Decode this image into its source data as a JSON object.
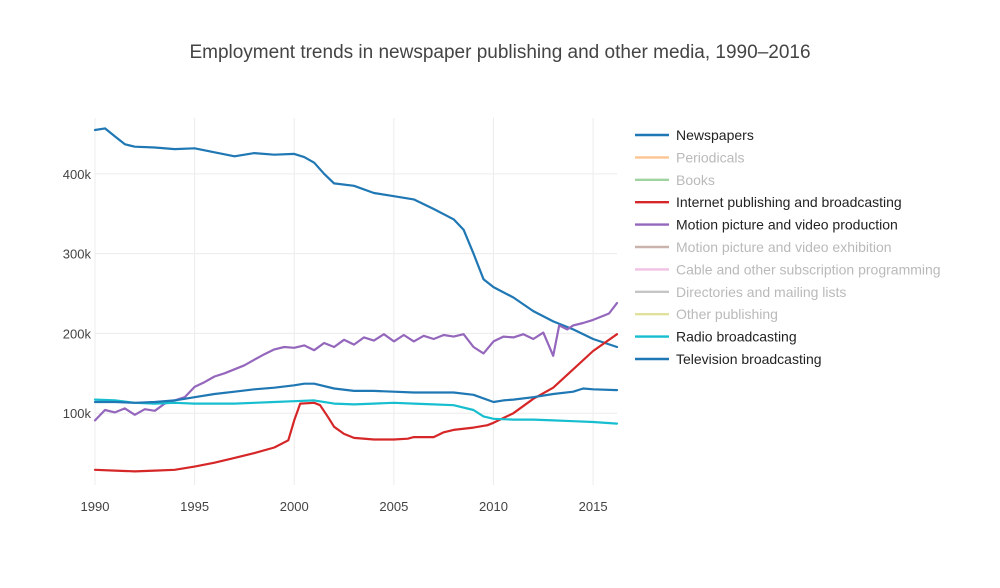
{
  "chart_data": {
    "type": "line",
    "title": "Employment trends in newspaper publishing and other media, 1990–2016",
    "xlabel": "",
    "ylabel": "",
    "xlim": [
      1990,
      2016.2
    ],
    "ylim": [
      10000,
      470000
    ],
    "x_ticks": [
      1990,
      1995,
      2000,
      2005,
      2010,
      2015
    ],
    "x_tick_labels": [
      "1990",
      "1995",
      "2000",
      "2005",
      "2010",
      "2015"
    ],
    "y_ticks": [
      100000,
      200000,
      300000,
      400000
    ],
    "y_tick_labels": [
      "100k",
      "200k",
      "300k",
      "400k"
    ],
    "grid": true,
    "legend_position": "right",
    "series": [
      {
        "name": "Newspapers",
        "color": "#1f77b4",
        "visible": true,
        "points": [
          [
            1990,
            455000
          ],
          [
            1990.5,
            457000
          ],
          [
            1991,
            447000
          ],
          [
            1991.5,
            437000
          ],
          [
            1992,
            434000
          ],
          [
            1993,
            433000
          ],
          [
            1994,
            431000
          ],
          [
            1995,
            432000
          ],
          [
            1996,
            427000
          ],
          [
            1997,
            422000
          ],
          [
            1998,
            426000
          ],
          [
            1999,
            424000
          ],
          [
            2000,
            425000
          ],
          [
            2000.5,
            421000
          ],
          [
            2001,
            414000
          ],
          [
            2001.5,
            400000
          ],
          [
            2002,
            388000
          ],
          [
            2003,
            385000
          ],
          [
            2004,
            376000
          ],
          [
            2005,
            372000
          ],
          [
            2006,
            368000
          ],
          [
            2007,
            356000
          ],
          [
            2008,
            343000
          ],
          [
            2008.5,
            330000
          ],
          [
            2009,
            300000
          ],
          [
            2009.5,
            268000
          ],
          [
            2010,
            258000
          ],
          [
            2011,
            245000
          ],
          [
            2012,
            228000
          ],
          [
            2013,
            215000
          ],
          [
            2014,
            205000
          ],
          [
            2015,
            193000
          ],
          [
            2016.2,
            183000
          ]
        ]
      },
      {
        "name": "Periodicals",
        "color": "#ff7f0e",
        "visible": false,
        "points": []
      },
      {
        "name": "Books",
        "color": "#2ca02c",
        "visible": false,
        "points": []
      },
      {
        "name": "Internet publishing and broadcasting",
        "color": "#d62728",
        "visible": true,
        "points": [
          [
            1990,
            29000
          ],
          [
            1991,
            28000
          ],
          [
            1992,
            27000
          ],
          [
            1993,
            28000
          ],
          [
            1994,
            29000
          ],
          [
            1995,
            33000
          ],
          [
            1996,
            38000
          ],
          [
            1997,
            44000
          ],
          [
            1998,
            50000
          ],
          [
            1999,
            57000
          ],
          [
            1999.7,
            66000
          ],
          [
            2000,
            91000
          ],
          [
            2000.3,
            112000
          ],
          [
            2001,
            113000
          ],
          [
            2001.3,
            110000
          ],
          [
            2001.7,
            95000
          ],
          [
            2002,
            83000
          ],
          [
            2002.5,
            74000
          ],
          [
            2003,
            69000
          ],
          [
            2004,
            67000
          ],
          [
            2005,
            67000
          ],
          [
            2005.7,
            68000
          ],
          [
            2006,
            70000
          ],
          [
            2007,
            70000
          ],
          [
            2007.5,
            76000
          ],
          [
            2008,
            79000
          ],
          [
            2009,
            82000
          ],
          [
            2009.7,
            85000
          ],
          [
            2010,
            88000
          ],
          [
            2011,
            100000
          ],
          [
            2012,
            118000
          ],
          [
            2013,
            132000
          ],
          [
            2014,
            155000
          ],
          [
            2015,
            178000
          ],
          [
            2016.2,
            199000
          ]
        ]
      },
      {
        "name": "Motion picture and video production",
        "color": "#9467bd",
        "visible": true,
        "points": [
          [
            1990,
            91000
          ],
          [
            1990.5,
            104000
          ],
          [
            1991,
            101000
          ],
          [
            1991.5,
            106000
          ],
          [
            1992,
            98000
          ],
          [
            1992.5,
            105000
          ],
          [
            1993,
            103000
          ],
          [
            1993.5,
            112000
          ],
          [
            1994,
            116000
          ],
          [
            1994.5,
            120000
          ],
          [
            1995,
            133000
          ],
          [
            1995.5,
            139000
          ],
          [
            1996,
            146000
          ],
          [
            1996.5,
            150000
          ],
          [
            1997,
            155000
          ],
          [
            1997.5,
            160000
          ],
          [
            1998,
            167000
          ],
          [
            1998.5,
            174000
          ],
          [
            1999,
            180000
          ],
          [
            1999.5,
            183000
          ],
          [
            2000,
            182000
          ],
          [
            2000.5,
            185000
          ],
          [
            2001,
            179000
          ],
          [
            2001.5,
            188000
          ],
          [
            2002,
            183000
          ],
          [
            2002.5,
            192000
          ],
          [
            2003,
            186000
          ],
          [
            2003.5,
            195000
          ],
          [
            2004,
            191000
          ],
          [
            2004.5,
            199000
          ],
          [
            2005,
            190000
          ],
          [
            2005.5,
            198000
          ],
          [
            2006,
            190000
          ],
          [
            2006.5,
            197000
          ],
          [
            2007,
            193000
          ],
          [
            2007.5,
            198000
          ],
          [
            2008,
            196000
          ],
          [
            2008.5,
            199000
          ],
          [
            2009,
            183000
          ],
          [
            2009.5,
            175000
          ],
          [
            2010,
            190000
          ],
          [
            2010.5,
            196000
          ],
          [
            2011,
            195000
          ],
          [
            2011.5,
            199000
          ],
          [
            2012,
            193000
          ],
          [
            2012.5,
            201000
          ],
          [
            2013,
            172000
          ],
          [
            2013.3,
            210000
          ],
          [
            2013.7,
            205000
          ],
          [
            2014,
            210000
          ],
          [
            2014.5,
            213000
          ],
          [
            2015,
            217000
          ],
          [
            2015.5,
            222000
          ],
          [
            2015.8,
            225000
          ],
          [
            2016.2,
            238000
          ]
        ]
      },
      {
        "name": "Motion picture and video exhibition",
        "color": "#8c564b",
        "visible": false,
        "points": []
      },
      {
        "name": "Cable and other subscription programming",
        "color": "#e377c2",
        "visible": false,
        "points": []
      },
      {
        "name": "Directories and mailing lists",
        "color": "#7f7f7f",
        "visible": false,
        "points": []
      },
      {
        "name": "Other publishing",
        "color": "#bcbd22",
        "visible": false,
        "points": []
      },
      {
        "name": "Radio broadcasting",
        "color": "#17becf",
        "visible": true,
        "points": [
          [
            1990,
            117000
          ],
          [
            1991,
            116000
          ],
          [
            1992,
            113000
          ],
          [
            1993,
            112000
          ],
          [
            1994,
            113000
          ],
          [
            1995,
            112000
          ],
          [
            1996,
            112000
          ],
          [
            1997,
            112000
          ],
          [
            1998,
            113000
          ],
          [
            1999,
            114000
          ],
          [
            2000,
            115000
          ],
          [
            2001,
            116000
          ],
          [
            2002,
            112000
          ],
          [
            2003,
            111000
          ],
          [
            2004,
            112000
          ],
          [
            2005,
            113000
          ],
          [
            2006,
            112000
          ],
          [
            2007,
            111000
          ],
          [
            2008,
            110000
          ],
          [
            2009,
            104000
          ],
          [
            2009.5,
            96000
          ],
          [
            2010,
            93000
          ],
          [
            2011,
            92000
          ],
          [
            2012,
            92000
          ],
          [
            2013,
            91000
          ],
          [
            2014,
            90000
          ],
          [
            2015,
            89000
          ],
          [
            2016.2,
            87000
          ]
        ]
      },
      {
        "name": "Television broadcasting",
        "color": "#1f77b4",
        "visible": true,
        "points": [
          [
            1990,
            114000
          ],
          [
            1991,
            114000
          ],
          [
            1992,
            113000
          ],
          [
            1993,
            114000
          ],
          [
            1994,
            116000
          ],
          [
            1995,
            120000
          ],
          [
            1996,
            124000
          ],
          [
            1997,
            127000
          ],
          [
            1998,
            130000
          ],
          [
            1999,
            132000
          ],
          [
            2000,
            135000
          ],
          [
            2000.5,
            137000
          ],
          [
            2001,
            137000
          ],
          [
            2002,
            131000
          ],
          [
            2003,
            128000
          ],
          [
            2004,
            128000
          ],
          [
            2005,
            127000
          ],
          [
            2006,
            126000
          ],
          [
            2007,
            126000
          ],
          [
            2008,
            126000
          ],
          [
            2009,
            123000
          ],
          [
            2010,
            114000
          ],
          [
            2010.5,
            116000
          ],
          [
            2011,
            117000
          ],
          [
            2012,
            120000
          ],
          [
            2013,
            124000
          ],
          [
            2014,
            127000
          ],
          [
            2014.5,
            131000
          ],
          [
            2015,
            130000
          ],
          [
            2016.2,
            129000
          ]
        ]
      }
    ]
  }
}
